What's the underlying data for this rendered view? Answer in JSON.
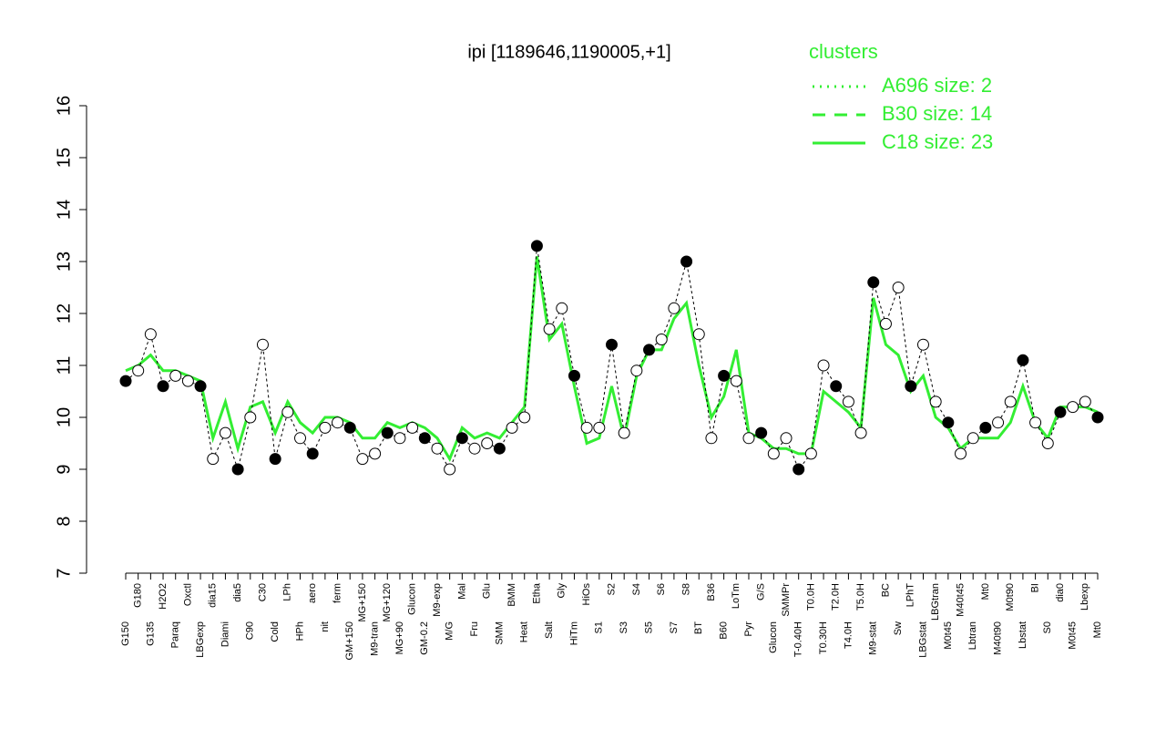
{
  "chart_data": {
    "type": "line",
    "title": "ipi [1189646,1190005,+1]",
    "legend_title": "clusters",
    "legend": [
      {
        "name": "A696 size: 2",
        "dash": "2,6"
      },
      {
        "name": "B30 size: 14",
        "dash": "14,10"
      },
      {
        "name": "C18 size: 23",
        "dash": "none"
      }
    ],
    "legend_color": "#33ee33",
    "ylim": [
      7,
      16
    ],
    "yticks": [
      7,
      8,
      9,
      10,
      11,
      12,
      13,
      14,
      15,
      16
    ],
    "categories": [
      "G150",
      "G180",
      "G135",
      "H2O2",
      "Paraq",
      "Oxctl",
      "LBGexp",
      "dia15",
      "Diami",
      "dia5",
      "C90",
      "C30",
      "Cold",
      "LPh",
      "HPh",
      "aero",
      "nit",
      "ferm",
      "GM+150",
      "MG+150",
      "M9-tran",
      "MG+120",
      "MG+90",
      "Glucon",
      "GM-0.2",
      "M9-exp",
      "M/G",
      "Mal",
      "Fru",
      "Glu",
      "SMM",
      "BMM",
      "Heat",
      "Etha",
      "Salt",
      "Gly",
      "HiTm",
      "HiOs",
      "S1",
      "S2",
      "S3",
      "S4",
      "S5",
      "S6",
      "S7",
      "S8",
      "BT",
      "B36",
      "B60",
      "LoTm",
      "Pyr",
      "G/S",
      "Glucon",
      "SMMPr",
      "T-0.40H",
      "T0.0H",
      "T0.30H",
      "T2.0H",
      "T4.0H",
      "T5.0H",
      "M9-stat",
      "BC",
      "Sw",
      "LPhT",
      "LBGstat",
      "LBGtran",
      "M0t45",
      "M40t45",
      "Lbtran",
      "Mt0",
      "M40t90",
      "M0t90",
      "Lbstat",
      "BI",
      "S0",
      "dia0",
      "M0t45",
      "Lbexp",
      "Mt0"
    ],
    "points": [
      10.7,
      10.9,
      11.6,
      10.6,
      10.8,
      10.7,
      10.6,
      9.2,
      9.7,
      9.0,
      10.0,
      11.4,
      9.2,
      10.1,
      9.6,
      9.3,
      9.8,
      9.9,
      9.8,
      9.2,
      9.3,
      9.7,
      9.6,
      9.8,
      9.6,
      9.4,
      9.0,
      9.6,
      9.4,
      9.5,
      9.4,
      9.8,
      10.0,
      13.3,
      11.7,
      12.1,
      10.8,
      9.8,
      9.8,
      11.4,
      9.7,
      10.9,
      11.3,
      11.5,
      12.1,
      13.0,
      11.6,
      9.6,
      10.8,
      10.7,
      9.6,
      9.7,
      9.3,
      9.6,
      9.0,
      9.3,
      11.0,
      10.6,
      10.3,
      9.7,
      12.6,
      11.8,
      12.5,
      10.6,
      11.4,
      10.3,
      9.9,
      9.3,
      9.6,
      9.8,
      9.9,
      10.3,
      11.1,
      9.9,
      9.5,
      10.1,
      10.2,
      10.3,
      10.0
    ],
    "series": [
      {
        "name": "C18 size: 23",
        "color": "#33ee33",
        "values": [
          10.9,
          11.0,
          11.2,
          10.9,
          10.9,
          10.8,
          10.7,
          9.6,
          10.3,
          9.4,
          10.2,
          10.3,
          9.7,
          10.3,
          9.9,
          9.7,
          10.0,
          10.0,
          9.9,
          9.6,
          9.6,
          9.9,
          9.8,
          9.9,
          9.8,
          9.6,
          9.2,
          9.8,
          9.6,
          9.7,
          9.6,
          9.9,
          10.2,
          13.1,
          11.5,
          11.8,
          10.6,
          9.5,
          9.6,
          10.6,
          9.6,
          10.8,
          11.3,
          11.3,
          11.9,
          12.2,
          11.0,
          10.0,
          10.4,
          11.3,
          9.7,
          9.6,
          9.4,
          9.4,
          9.3,
          9.3,
          10.5,
          10.3,
          10.1,
          9.8,
          12.3,
          11.4,
          11.2,
          10.5,
          10.8,
          10.0,
          9.8,
          9.4,
          9.6,
          9.6,
          9.6,
          9.9,
          10.6,
          9.9,
          9.6,
          10.2,
          10.2,
          10.2,
          10.1
        ]
      }
    ]
  }
}
